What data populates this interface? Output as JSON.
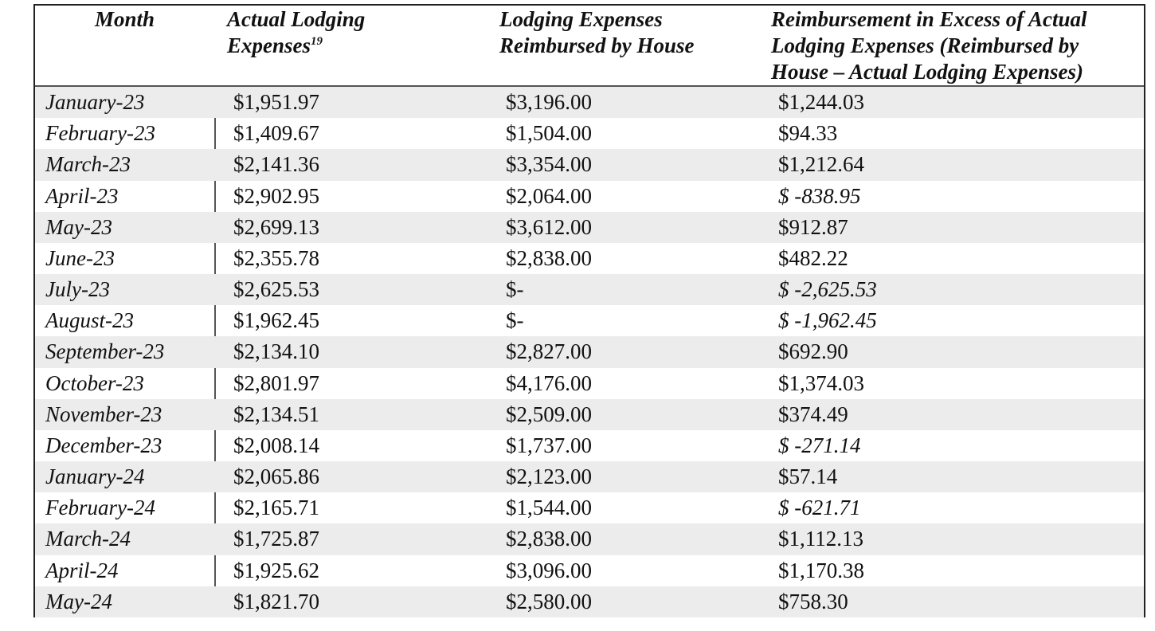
{
  "table": {
    "header": [
      [
        "Month"
      ],
      [
        "Actual Lodging",
        "Expenses"
      ],
      [
        "Lodging Expenses",
        "Reimbursed by House"
      ],
      [
        "Reimbursement in Excess of Actual",
        "Lodging Expenses (Reimbursed by",
        "House – Actual Lodging Expenses)"
      ]
    ],
    "header_footnote": "19",
    "rows": [
      [
        "January-23",
        "$1,951.97",
        "$3,196.00",
        "$1,244.03"
      ],
      [
        "February-23",
        "$1,409.67",
        "$1,504.00",
        "$94.33"
      ],
      [
        "March-23",
        "$2,141.36",
        "$3,354.00",
        "$1,212.64"
      ],
      [
        "April-23",
        "$2,902.95",
        "$2,064.00",
        "$ -838.95"
      ],
      [
        "May-23",
        "$2,699.13",
        "$3,612.00",
        "$912.87"
      ],
      [
        "June-23",
        "$2,355.78",
        "$2,838.00",
        "$482.22"
      ],
      [
        "July-23",
        "$2,625.53",
        "$-",
        "$ -2,625.53"
      ],
      [
        "August-23",
        "$1,962.45",
        "$-",
        "$ -1,962.45"
      ],
      [
        "September-23",
        "$2,134.10",
        "$2,827.00",
        "$692.90"
      ],
      [
        "October-23",
        "$2,801.97",
        "$4,176.00",
        "$1,374.03"
      ],
      [
        "November-23",
        "$2,134.51",
        "$2,509.00",
        "$374.49"
      ],
      [
        "December-23",
        "$2,008.14",
        "$1,737.00",
        "$ -271.14"
      ],
      [
        "January-24",
        "$2,065.86",
        "$2,123.00",
        "$57.14"
      ],
      [
        "February-24",
        "$2,165.71",
        "$1,544.00",
        "$ -621.71"
      ],
      [
        "March-24",
        "$1,725.87",
        "$2,838.00",
        "$1,112.13"
      ],
      [
        "April-24",
        "$1,925.62",
        "$3,096.00",
        "$1,170.38"
      ],
      [
        "May-24",
        "$1,821.70",
        "$2,580.00",
        "$758.30"
      ]
    ]
  }
}
